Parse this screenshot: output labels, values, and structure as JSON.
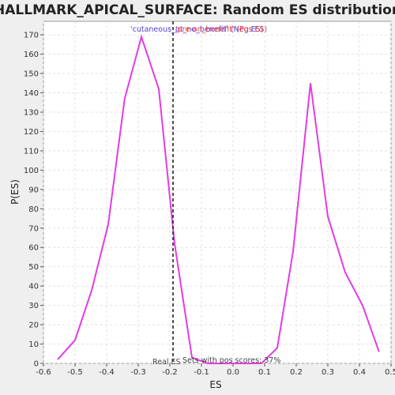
{
  "chart_data": {
    "type": "line",
    "title": "HALLMARK_APICAL_SURFACE: Random ES distribution",
    "xlabel": "ES",
    "ylabel": "P(ES)",
    "xlim": [
      -0.6,
      0.5
    ],
    "ylim": [
      0,
      177
    ],
    "x_ticks": [
      -0.6,
      -0.5,
      -0.4,
      -0.3,
      -0.2,
      -0.1,
      0.0,
      0.1,
      0.2,
      0.3,
      0.4,
      0.5
    ],
    "x_tick_labels": [
      "-0.6",
      "-0.5",
      "-0.4",
      "-0.3",
      "-0.2",
      "-0.1",
      "0.0",
      "0.1",
      "0.2",
      "0.3",
      "0.4",
      "0.5"
    ],
    "y_ticks": [
      0,
      10,
      20,
      30,
      40,
      50,
      60,
      70,
      80,
      90,
      100,
      110,
      120,
      130,
      140,
      150,
      160,
      170
    ],
    "y_tick_labels": [
      "0",
      "10",
      "20",
      "30",
      "40",
      "50",
      "60",
      "70",
      "80",
      "90",
      "100",
      "110",
      "120",
      "130",
      "140",
      "150",
      "160",
      "170"
    ],
    "grid": true,
    "series": [
      {
        "name": "Random ES distribution",
        "color": "#e33be3",
        "x": [
          -0.555,
          -0.5,
          -0.447,
          -0.395,
          -0.343,
          -0.29,
          -0.235,
          -0.185,
          -0.13,
          -0.08,
          0.02,
          0.09,
          0.14,
          0.19,
          0.245,
          0.3,
          0.355,
          0.41,
          0.462
        ],
        "y": [
          2,
          12,
          38,
          72,
          137,
          169,
          142,
          62,
          3,
          0,
          0,
          0,
          8,
          58,
          145,
          76,
          47,
          30,
          6
        ]
      }
    ],
    "real_es": -0.19,
    "real_es_label": "Real ES",
    "annotation": "Sets with pos scores: 37%",
    "legend": [
      {
        "label": "'cutaneous_pt_no_benefit' (Neg ES)",
        "color": "#5a3ad6"
      },
      {
        "label": "'pre-on_benefit' (Pos ES)",
        "color": "#e0403a"
      }
    ]
  }
}
